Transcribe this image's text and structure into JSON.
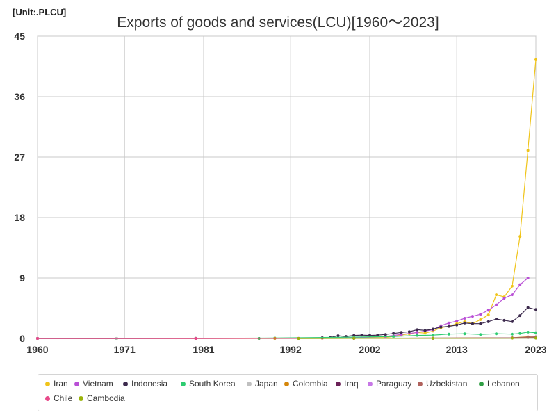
{
  "unit_label": "[Unit:.PLCU]",
  "chart_data": {
    "type": "line",
    "title": "Exports of goods and services(LCU)[1960～2023]",
    "xlabel": "",
    "ylabel": "",
    "xlim": [
      1960,
      2023
    ],
    "ylim": [
      0,
      45
    ],
    "x_ticks": [
      1960,
      1971,
      1981,
      1992,
      2002,
      2013,
      2023
    ],
    "y_ticks": [
      0,
      9,
      18,
      27,
      36,
      45
    ],
    "grid": true,
    "legend_position": "bottom",
    "series": [
      {
        "name": "Iran",
        "color": "#f0c419",
        "points": [
          [
            1960,
            0
          ],
          [
            1970,
            0
          ],
          [
            1980,
            0
          ],
          [
            1990,
            0
          ],
          [
            1996,
            0.02
          ],
          [
            2000,
            0.05
          ],
          [
            2004,
            0.15
          ],
          [
            2005,
            0.3
          ],
          [
            2006,
            0.5
          ],
          [
            2007,
            0.7
          ],
          [
            2008,
            0.9
          ],
          [
            2009,
            0.8
          ],
          [
            2010,
            1.1
          ],
          [
            2011,
            1.6
          ],
          [
            2012,
            1.8
          ],
          [
            2013,
            2.2
          ],
          [
            2014,
            2.5
          ],
          [
            2015,
            2.2
          ],
          [
            2016,
            2.8
          ],
          [
            2017,
            3.5
          ],
          [
            2018,
            6.5
          ],
          [
            2019,
            6.2
          ],
          [
            2020,
            7.8
          ],
          [
            2021,
            15.2
          ],
          [
            2022,
            28.0
          ],
          [
            2023,
            41.5
          ]
        ]
      },
      {
        "name": "Vietnam",
        "color": "#b94fd6",
        "points": [
          [
            1993,
            0.02
          ],
          [
            1996,
            0.05
          ],
          [
            2000,
            0.1
          ],
          [
            2004,
            0.3
          ],
          [
            2006,
            0.6
          ],
          [
            2008,
            0.9
          ],
          [
            2010,
            1.3
          ],
          [
            2011,
            1.9
          ],
          [
            2012,
            2.3
          ],
          [
            2013,
            2.6
          ],
          [
            2014,
            3.0
          ],
          [
            2015,
            3.3
          ],
          [
            2016,
            3.6
          ],
          [
            2017,
            4.2
          ],
          [
            2018,
            5.0
          ],
          [
            2019,
            6.0
          ],
          [
            2020,
            6.5
          ],
          [
            2021,
            8.0
          ],
          [
            2022,
            9.0
          ]
        ]
      },
      {
        "name": "Indonesia",
        "color": "#3c2a4d",
        "points": [
          [
            1960,
            0
          ],
          [
            1970,
            0
          ],
          [
            1980,
            0.01
          ],
          [
            1990,
            0.03
          ],
          [
            1996,
            0.1
          ],
          [
            1997,
            0.15
          ],
          [
            1998,
            0.4
          ],
          [
            1999,
            0.3
          ],
          [
            2000,
            0.45
          ],
          [
            2001,
            0.5
          ],
          [
            2002,
            0.45
          ],
          [
            2003,
            0.5
          ],
          [
            2004,
            0.6
          ],
          [
            2005,
            0.75
          ],
          [
            2006,
            0.9
          ],
          [
            2007,
            1.0
          ],
          [
            2008,
            1.3
          ],
          [
            2009,
            1.2
          ],
          [
            2010,
            1.4
          ],
          [
            2011,
            1.7
          ],
          [
            2012,
            1.8
          ],
          [
            2013,
            2.0
          ],
          [
            2014,
            2.3
          ],
          [
            2015,
            2.2
          ],
          [
            2016,
            2.2
          ],
          [
            2017,
            2.5
          ],
          [
            2018,
            2.9
          ],
          [
            2019,
            2.7
          ],
          [
            2020,
            2.5
          ],
          [
            2021,
            3.4
          ],
          [
            2022,
            4.6
          ],
          [
            2023,
            4.3
          ]
        ]
      },
      {
        "name": "South Korea",
        "color": "#2ecc71",
        "points": [
          [
            1960,
            0
          ],
          [
            1970,
            0
          ],
          [
            1980,
            0.02
          ],
          [
            1990,
            0.06
          ],
          [
            2000,
            0.2
          ],
          [
            2005,
            0.3
          ],
          [
            2008,
            0.45
          ],
          [
            2010,
            0.5
          ],
          [
            2012,
            0.65
          ],
          [
            2014,
            0.7
          ],
          [
            2016,
            0.6
          ],
          [
            2018,
            0.7
          ],
          [
            2020,
            0.65
          ],
          [
            2021,
            0.75
          ],
          [
            2022,
            0.95
          ],
          [
            2023,
            0.85
          ]
        ]
      },
      {
        "name": "Japan",
        "color": "#c0c0c0",
        "points": [
          [
            1960,
            0
          ],
          [
            1970,
            0.01
          ],
          [
            1980,
            0.03
          ],
          [
            1990,
            0.04
          ],
          [
            2000,
            0.05
          ],
          [
            2010,
            0.07
          ],
          [
            2020,
            0.07
          ],
          [
            2023,
            0.1
          ]
        ]
      },
      {
        "name": "Colombia",
        "color": "#d4860b",
        "points": [
          [
            1960,
            0
          ],
          [
            1980,
            0
          ],
          [
            1990,
            0.01
          ],
          [
            2000,
            0.02
          ],
          [
            2010,
            0.05
          ],
          [
            2020,
            0.1
          ],
          [
            2022,
            0.25
          ],
          [
            2023,
            0.2
          ]
        ]
      },
      {
        "name": "Iraq",
        "color": "#6b2157",
        "points": [
          [
            1960,
            0
          ],
          [
            1980,
            0
          ],
          [
            2000,
            0.01
          ],
          [
            2010,
            0.05
          ],
          [
            2020,
            0.07
          ],
          [
            2022,
            0.15
          ],
          [
            2023,
            0.12
          ]
        ]
      },
      {
        "name": "Paraguay",
        "color": "#c778e6",
        "points": [
          [
            1960,
            0
          ],
          [
            1980,
            0
          ],
          [
            2000,
            0.01
          ],
          [
            2010,
            0.03
          ],
          [
            2020,
            0.05
          ],
          [
            2023,
            0.07
          ]
        ]
      },
      {
        "name": "Uzbekistan",
        "color": "#b0625d",
        "points": [
          [
            1993,
            0
          ],
          [
            2000,
            0.01
          ],
          [
            2010,
            0.02
          ],
          [
            2020,
            0.1
          ],
          [
            2022,
            0.2
          ],
          [
            2023,
            0.25
          ]
        ]
      },
      {
        "name": "Lebanon",
        "color": "#2f9e44",
        "points": [
          [
            1988,
            0
          ],
          [
            2000,
            0.01
          ],
          [
            2010,
            0.02
          ],
          [
            2020,
            0.05
          ],
          [
            2023,
            0.08
          ]
        ]
      },
      {
        "name": "Chile",
        "color": "#e84a8a",
        "points": [
          [
            1960,
            0
          ],
          [
            1980,
            0
          ],
          [
            2000,
            0.01
          ],
          [
            2010,
            0.03
          ],
          [
            2020,
            0.05
          ],
          [
            2023,
            0.07
          ]
        ]
      },
      {
        "name": "Cambodia",
        "color": "#9ab30a",
        "points": [
          [
            1993,
            0
          ],
          [
            2000,
            0.01
          ],
          [
            2010,
            0.02
          ],
          [
            2020,
            0.04
          ],
          [
            2023,
            0.05
          ]
        ]
      }
    ]
  }
}
